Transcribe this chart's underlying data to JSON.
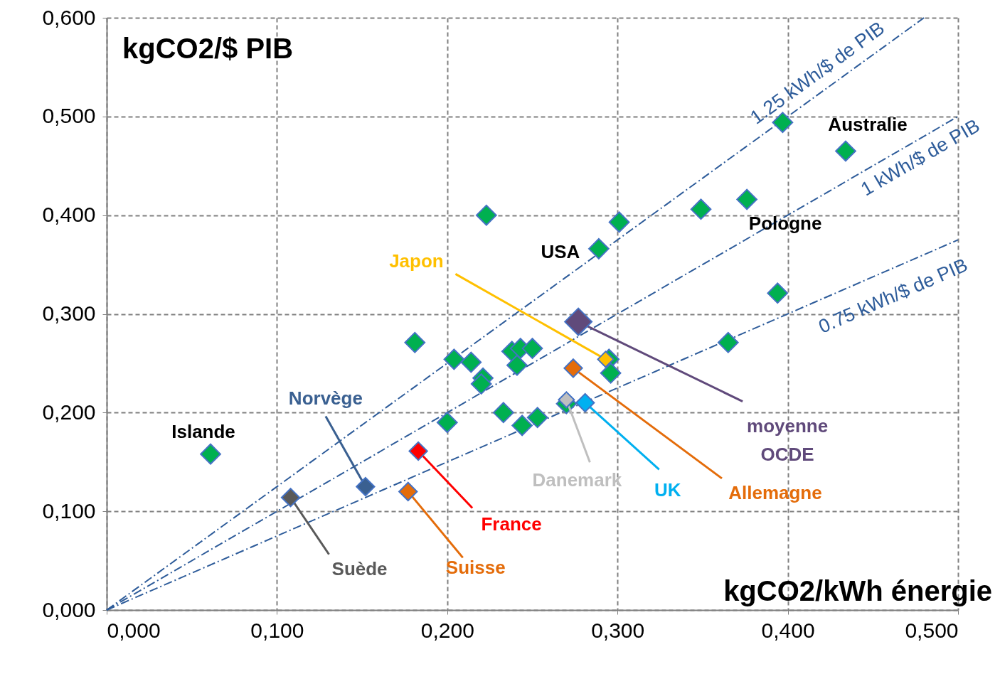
{
  "chart_data": {
    "type": "scatter",
    "xlabel": "kgCO2/kWh énergie",
    "ylabel": "kgCO2/$ PIB",
    "marker": "diamond",
    "grid": true,
    "xlim": [
      0,
      0.5
    ],
    "ylim": [
      0,
      0.6
    ],
    "xticks": [
      {
        "value": 0,
        "label": "0,000"
      },
      {
        "value": 0.1,
        "label": "0,100"
      },
      {
        "value": 0.2,
        "label": "0,200"
      },
      {
        "value": 0.3,
        "label": "0,300"
      },
      {
        "value": 0.4,
        "label": "0,400"
      },
      {
        "value": 0.5,
        "label": "0,500"
      }
    ],
    "yticks": [
      {
        "value": 0,
        "label": "0,000"
      },
      {
        "value": 0.1,
        "label": "0,100"
      },
      {
        "value": 0.2,
        "label": "0,200"
      },
      {
        "value": 0.3,
        "label": "0,300"
      },
      {
        "value": 0.4,
        "label": "0,400"
      },
      {
        "value": 0.5,
        "label": "0,500"
      },
      {
        "value": 0.6,
        "label": "0,600"
      }
    ],
    "series": [
      {
        "color": "#00b050",
        "x": [
          0.061,
          0.181,
          0.223,
          0.204,
          0.214,
          0.221,
          0.22,
          0.238,
          0.243,
          0.241,
          0.25,
          0.2,
          0.233,
          0.244,
          0.253,
          0.27,
          0.289,
          0.301,
          0.295,
          0.296,
          0.349,
          0.376,
          0.397,
          0.434,
          0.394,
          0.365
        ],
        "values": [
          0.158,
          0.271,
          0.4,
          0.254,
          0.251,
          0.235,
          0.229,
          0.262,
          0.265,
          0.248,
          0.265,
          0.19,
          0.2,
          0.187,
          0.195,
          0.209,
          0.366,
          0.393,
          0.254,
          0.24,
          0.406,
          0.416,
          0.494,
          0.465,
          0.321,
          0.271
        ]
      },
      {
        "name": "Norvège",
        "color": "#3a6091",
        "x": [
          0.152
        ],
        "values": [
          0.125
        ]
      },
      {
        "name": "Suède",
        "color": "#595959",
        "x": [
          0.108
        ],
        "values": [
          0.114
        ]
      },
      {
        "name": "Suisse",
        "color": "#e46c0a",
        "x": [
          0.177
        ],
        "values": [
          0.12
        ]
      },
      {
        "name": "France",
        "color": "#ff0000",
        "x": [
          0.183
        ],
        "values": [
          0.161
        ]
      },
      {
        "name": "Japon",
        "color": "#ffc000",
        "x": [
          0.293
        ],
        "values": [
          0.254
        ]
      },
      {
        "name": "Allemagne",
        "color": "#e46c0a",
        "x": [
          0.274
        ],
        "values": [
          0.245
        ]
      },
      {
        "name": "UK",
        "color": "#00b0f0",
        "x": [
          0.281
        ],
        "values": [
          0.21
        ]
      },
      {
        "name": "Danemark",
        "color": "#bfbfbf",
        "x": [
          0.27
        ],
        "values": [
          0.213
        ]
      },
      {
        "name": "moyenne OCDE",
        "color": "#604a7b",
        "x": [
          0.277
        ],
        "values": [
          0.292
        ]
      },
      {
        "name": "1.25 kWh/$ de PIB",
        "type": "line",
        "line_style": "dashed",
        "marker": "none",
        "color": "#2e5c9a",
        "x": [
          0,
          0.48
        ],
        "values": [
          0,
          0.6
        ]
      },
      {
        "name": "1 kWh/$ de PIB",
        "type": "line",
        "line_style": "dashed",
        "marker": "none",
        "color": "#2e5c9a",
        "x": [
          0,
          0.5
        ],
        "values": [
          0,
          0.5
        ]
      },
      {
        "name": "0.75 kWh/$ de PIB",
        "type": "line",
        "line_style": "dashed",
        "marker": "none",
        "color": "#2e5c9a",
        "x": [
          0,
          0.5
        ],
        "values": [
          0,
          0.375
        ]
      }
    ],
    "annotations": [
      {
        "text": "Islande",
        "x": 0.061,
        "y": 0.158
      },
      {
        "text": "USA",
        "x": 0.289,
        "y": 0.366
      },
      {
        "text": "Australie",
        "x": 0.434,
        "y": 0.465
      },
      {
        "text": "Pologne",
        "x": 0.376,
        "y": 0.416
      }
    ]
  }
}
